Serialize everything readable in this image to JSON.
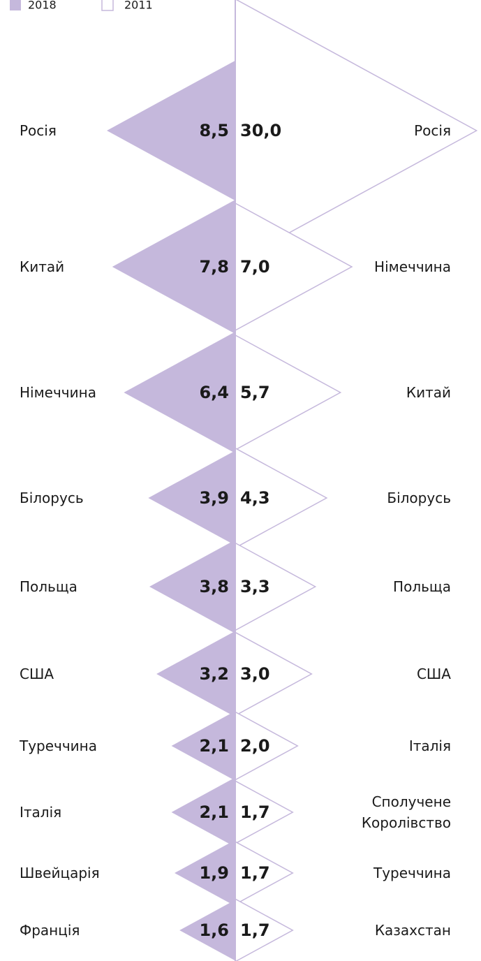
{
  "chart_data": {
    "type": "mirrored-triangle",
    "series": [
      {
        "name": "2018",
        "color": "#c5b8dc",
        "categories": [
          "Росія",
          "Китай",
          "Німеччина",
          "Білорусь",
          "Польща",
          "США",
          "Туреччина",
          "Італія",
          "Швейцарія",
          "Франція"
        ],
        "values": [
          8.5,
          7.8,
          6.4,
          3.9,
          3.8,
          3.2,
          2.1,
          2.1,
          1.9,
          1.6
        ],
        "value_labels": [
          "8,5",
          "7,8",
          "6,4",
          "3,9",
          "3,8",
          "3,2",
          "2,1",
          "2,1",
          "1,9",
          "1,6"
        ]
      },
      {
        "name": "2011",
        "color": "#c5b8dc",
        "categories": [
          "Росія",
          "Німеччина",
          "Китай",
          "Білорусь",
          "Польща",
          "США",
          "Італія",
          "Сполучене Королівство",
          "Туреччина",
          "Казахстан"
        ],
        "values": [
          30.0,
          7.0,
          5.7,
          4.3,
          3.3,
          3.0,
          2.0,
          1.7,
          1.7,
          1.7
        ],
        "value_labels": [
          "30,0",
          "7,0",
          "5,7",
          "4,3",
          "3,3",
          "3,0",
          "2,0",
          "1,7",
          "1,7",
          "1,7"
        ]
      }
    ]
  }
}
